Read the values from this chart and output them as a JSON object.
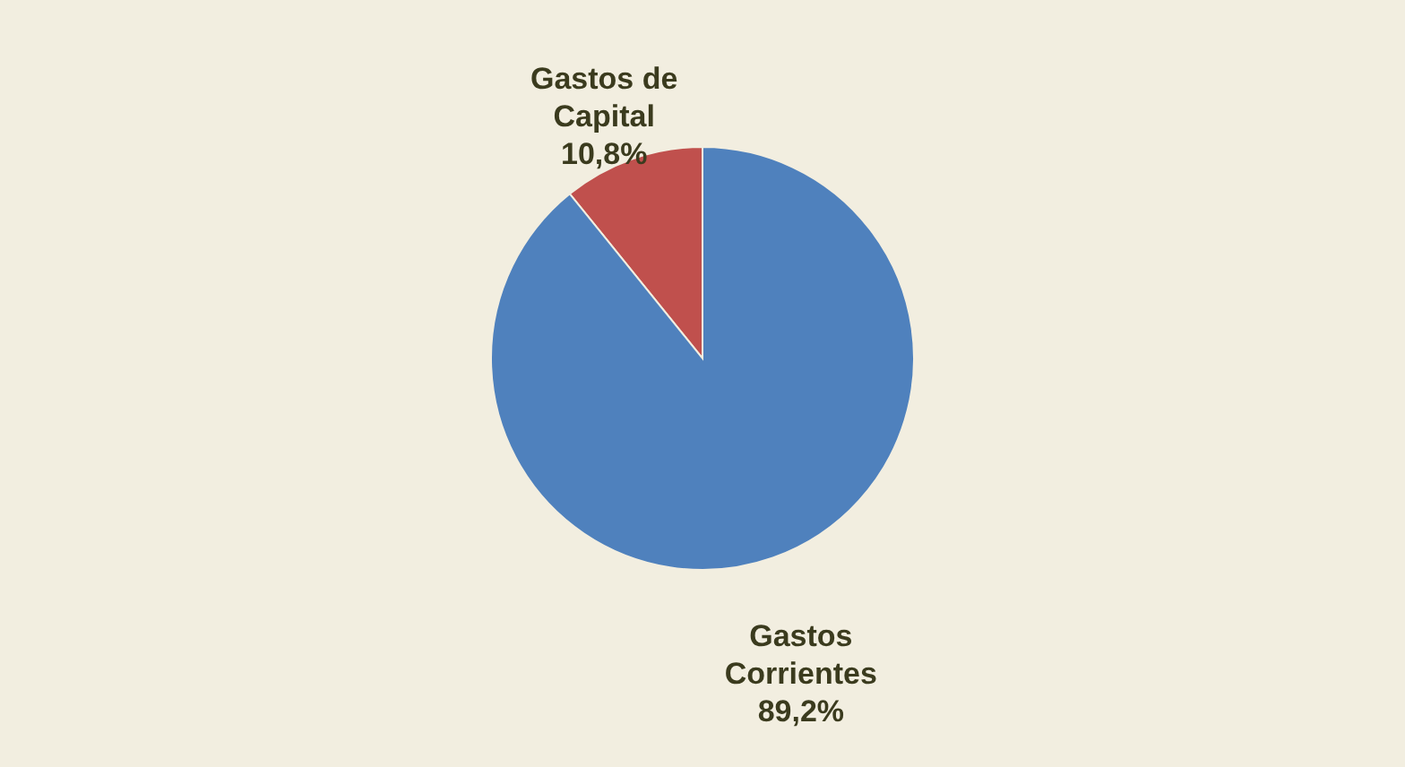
{
  "chart_data": {
    "type": "pie",
    "categories": [
      "Gastos de Capital",
      "Gastos Corrientes"
    ],
    "values": [
      10.8,
      89.2
    ],
    "colors": [
      "#c0504d",
      "#4f81bd"
    ],
    "value_labels": [
      "10,8%",
      "89,2%"
    ]
  }
}
